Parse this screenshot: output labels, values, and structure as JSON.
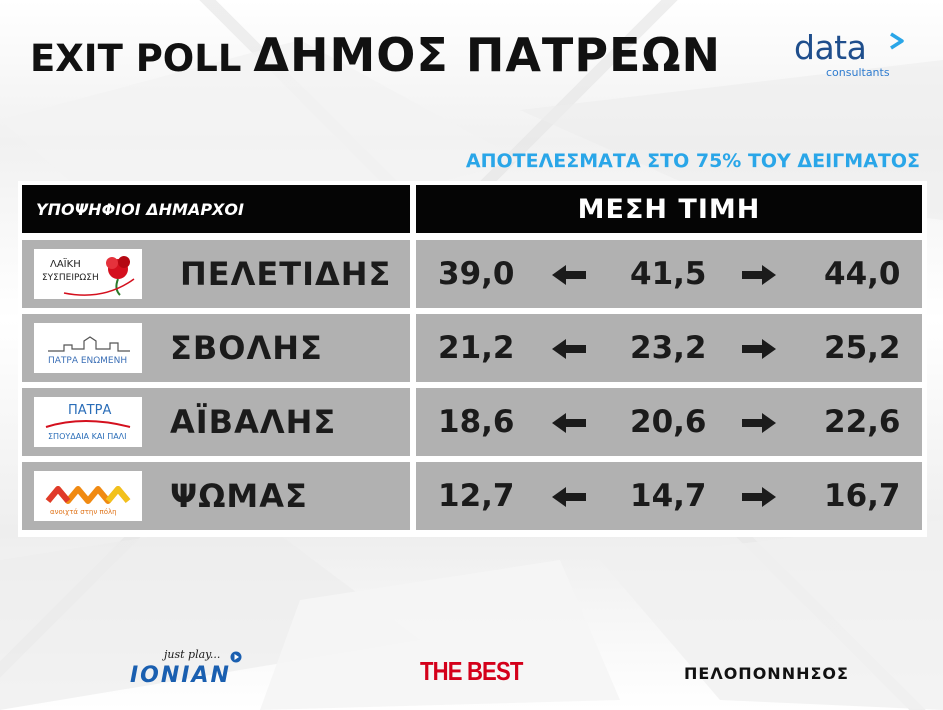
{
  "title": {
    "part1": "EXIT POLL",
    "part2": "ΔΗΜΟΣ ΠΑΤΡΕΩΝ"
  },
  "brand": {
    "word": "data",
    "sub": "consultants",
    "color": "#1f4e8c"
  },
  "subtitle": "ΑΠΟΤΕΛΕΣΜΑΤΑ ΣΤΟ 75% ΤΟΥ ΔΕΙΓΜΑΤΟΣ",
  "header": {
    "candidates": "ΥΠΟΨΗΦΙΟΙ ΔΗΜΑΡΧΟΙ",
    "value": "ΜΕΣΗ ΤΙΜΗ"
  },
  "rows": [
    {
      "name": "ΠΕΛΕΤΙΔΗΣ",
      "logo_line1": "ΛΑΪΚΗ",
      "logo_line2": "ΣΥΣΠΕΙΡΩΣΗ",
      "low": "39,0",
      "mid": "41,5",
      "high": "44,0"
    },
    {
      "name": "ΣΒΟΛΗΣ",
      "logo_line1": "ΠΑΤΡΑ ΕΝΩΜΕΝΗ",
      "low": "21,2",
      "mid": "23,2",
      "high": "25,2"
    },
    {
      "name": "ΑΪΒΑΛΗΣ",
      "logo_line1": "ΠΑΤΡΑ",
      "logo_line2": "ΣΠΟΥΔΑΙΑ ΚΑΙ ΠΑΛΙ",
      "low": "18,6",
      "mid": "20,6",
      "high": "22,6"
    },
    {
      "name": "ΨΩΜΑΣ",
      "logo_line1": "ανοιχτά στην πόλη",
      "low": "12,7",
      "mid": "14,7",
      "high": "16,7"
    }
  ],
  "footer": {
    "ionian_tag": "just play...",
    "ionian": "IONIAN",
    "best": "THE BEST",
    "pel": "ΠΕΛΟΠΟΝΝΗΣΟΣ"
  },
  "colors": {
    "accent": "#2aa6e8",
    "header_bg": "#050505",
    "row_bg": "#b1b1b1",
    "best_red": "#d4001a",
    "ionian_blue": "#1a5fb0"
  }
}
